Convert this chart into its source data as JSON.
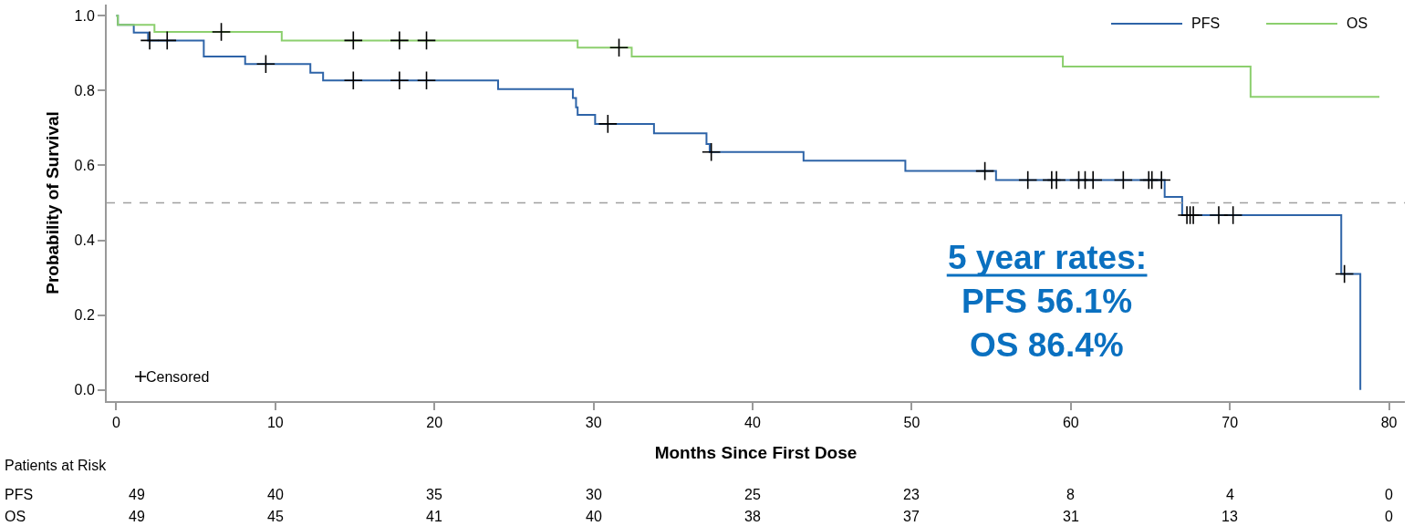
{
  "chart_data": {
    "type": "step",
    "xlabel": "Months Since First Dose",
    "ylabel": "Probability of Survival",
    "xlim": [
      -0.6,
      81
    ],
    "xticks": [
      0,
      10,
      20,
      30,
      40,
      50,
      60,
      70,
      80
    ],
    "ylim": [
      -0.03,
      1.03
    ],
    "yticks": [
      {
        "value": 0,
        "label": "0.0"
      },
      {
        "value": 0.2,
        "label": "0.2"
      },
      {
        "value": 0.4,
        "label": "0.4"
      },
      {
        "value": 0.6,
        "label": "0.6"
      },
      {
        "value": 0.8,
        "label": "0.8"
      },
      {
        "value": 1,
        "label": "1.0"
      }
    ],
    "grid": false,
    "legend": "top right",
    "line_style": "solid",
    "series": [
      {
        "name": "PFS",
        "color": "#2e64a8",
        "x": [
          0,
          0.1,
          1.1,
          2.0,
          5.5,
          8.1,
          12.2,
          13.0,
          24.0,
          28.7,
          28.9,
          29.0,
          30.1,
          33.8,
          37.1,
          37.3,
          43.2,
          49.6,
          55.3,
          65.9,
          67.0,
          77.0,
          78.2
        ],
        "values": [
          1.0,
          0.976,
          0.955,
          0.934,
          0.891,
          0.871,
          0.848,
          0.827,
          0.804,
          0.78,
          0.755,
          0.735,
          0.711,
          0.686,
          0.657,
          0.636,
          0.613,
          0.585,
          0.561,
          0.516,
          0.467,
          0.31,
          0
        ]
      },
      {
        "name": "OS",
        "color": "#8ccf6e",
        "x": [
          0,
          0.1,
          2.4,
          10.4,
          29.0,
          32.4,
          59.5,
          71.3,
          79.4
        ],
        "values": [
          1.0,
          0.976,
          0.957,
          0.934,
          0.915,
          0.891,
          0.864,
          0.783,
          0.783
        ]
      },
      {
        "name": "Censored",
        "type": "scatter",
        "marker": "cross",
        "color": "#000000",
        "x": [
          2.1,
          3.2,
          9.4,
          14.9,
          17.8,
          19.5,
          30.9,
          37.4,
          54.6,
          57.3,
          58.8,
          59.1,
          60.5,
          60.9,
          61.4,
          63.3,
          64.9,
          65.1,
          65.7,
          67.3,
          67.5,
          67.7,
          69.3,
          70.2,
          77.2,
          6.6,
          14.9,
          17.8,
          19.5,
          31.6
        ],
        "values": [
          0.934,
          0.934,
          0.871,
          0.827,
          0.827,
          0.827,
          0.711,
          0.636,
          0.585,
          0.561,
          0.561,
          0.561,
          0.561,
          0.561,
          0.561,
          0.561,
          0.561,
          0.561,
          0.561,
          0.467,
          0.467,
          0.467,
          0.467,
          0.467,
          0.31,
          0.957,
          0.934,
          0.934,
          0.934,
          0.915
        ]
      }
    ],
    "ref_lines": [
      {
        "axis": "y",
        "value": 0.5,
        "color": "#a0a0a0",
        "line_style": "dashed"
      }
    ],
    "annotations": [
      "5 year rates:",
      "PFS 56.1%",
      "OS 86.4%",
      "Patients at Risk",
      "PFS 49 40 35 30 25 23 8 4 0",
      "OS 49 45 41 40 38 37 31 13 0"
    ]
  }
}
